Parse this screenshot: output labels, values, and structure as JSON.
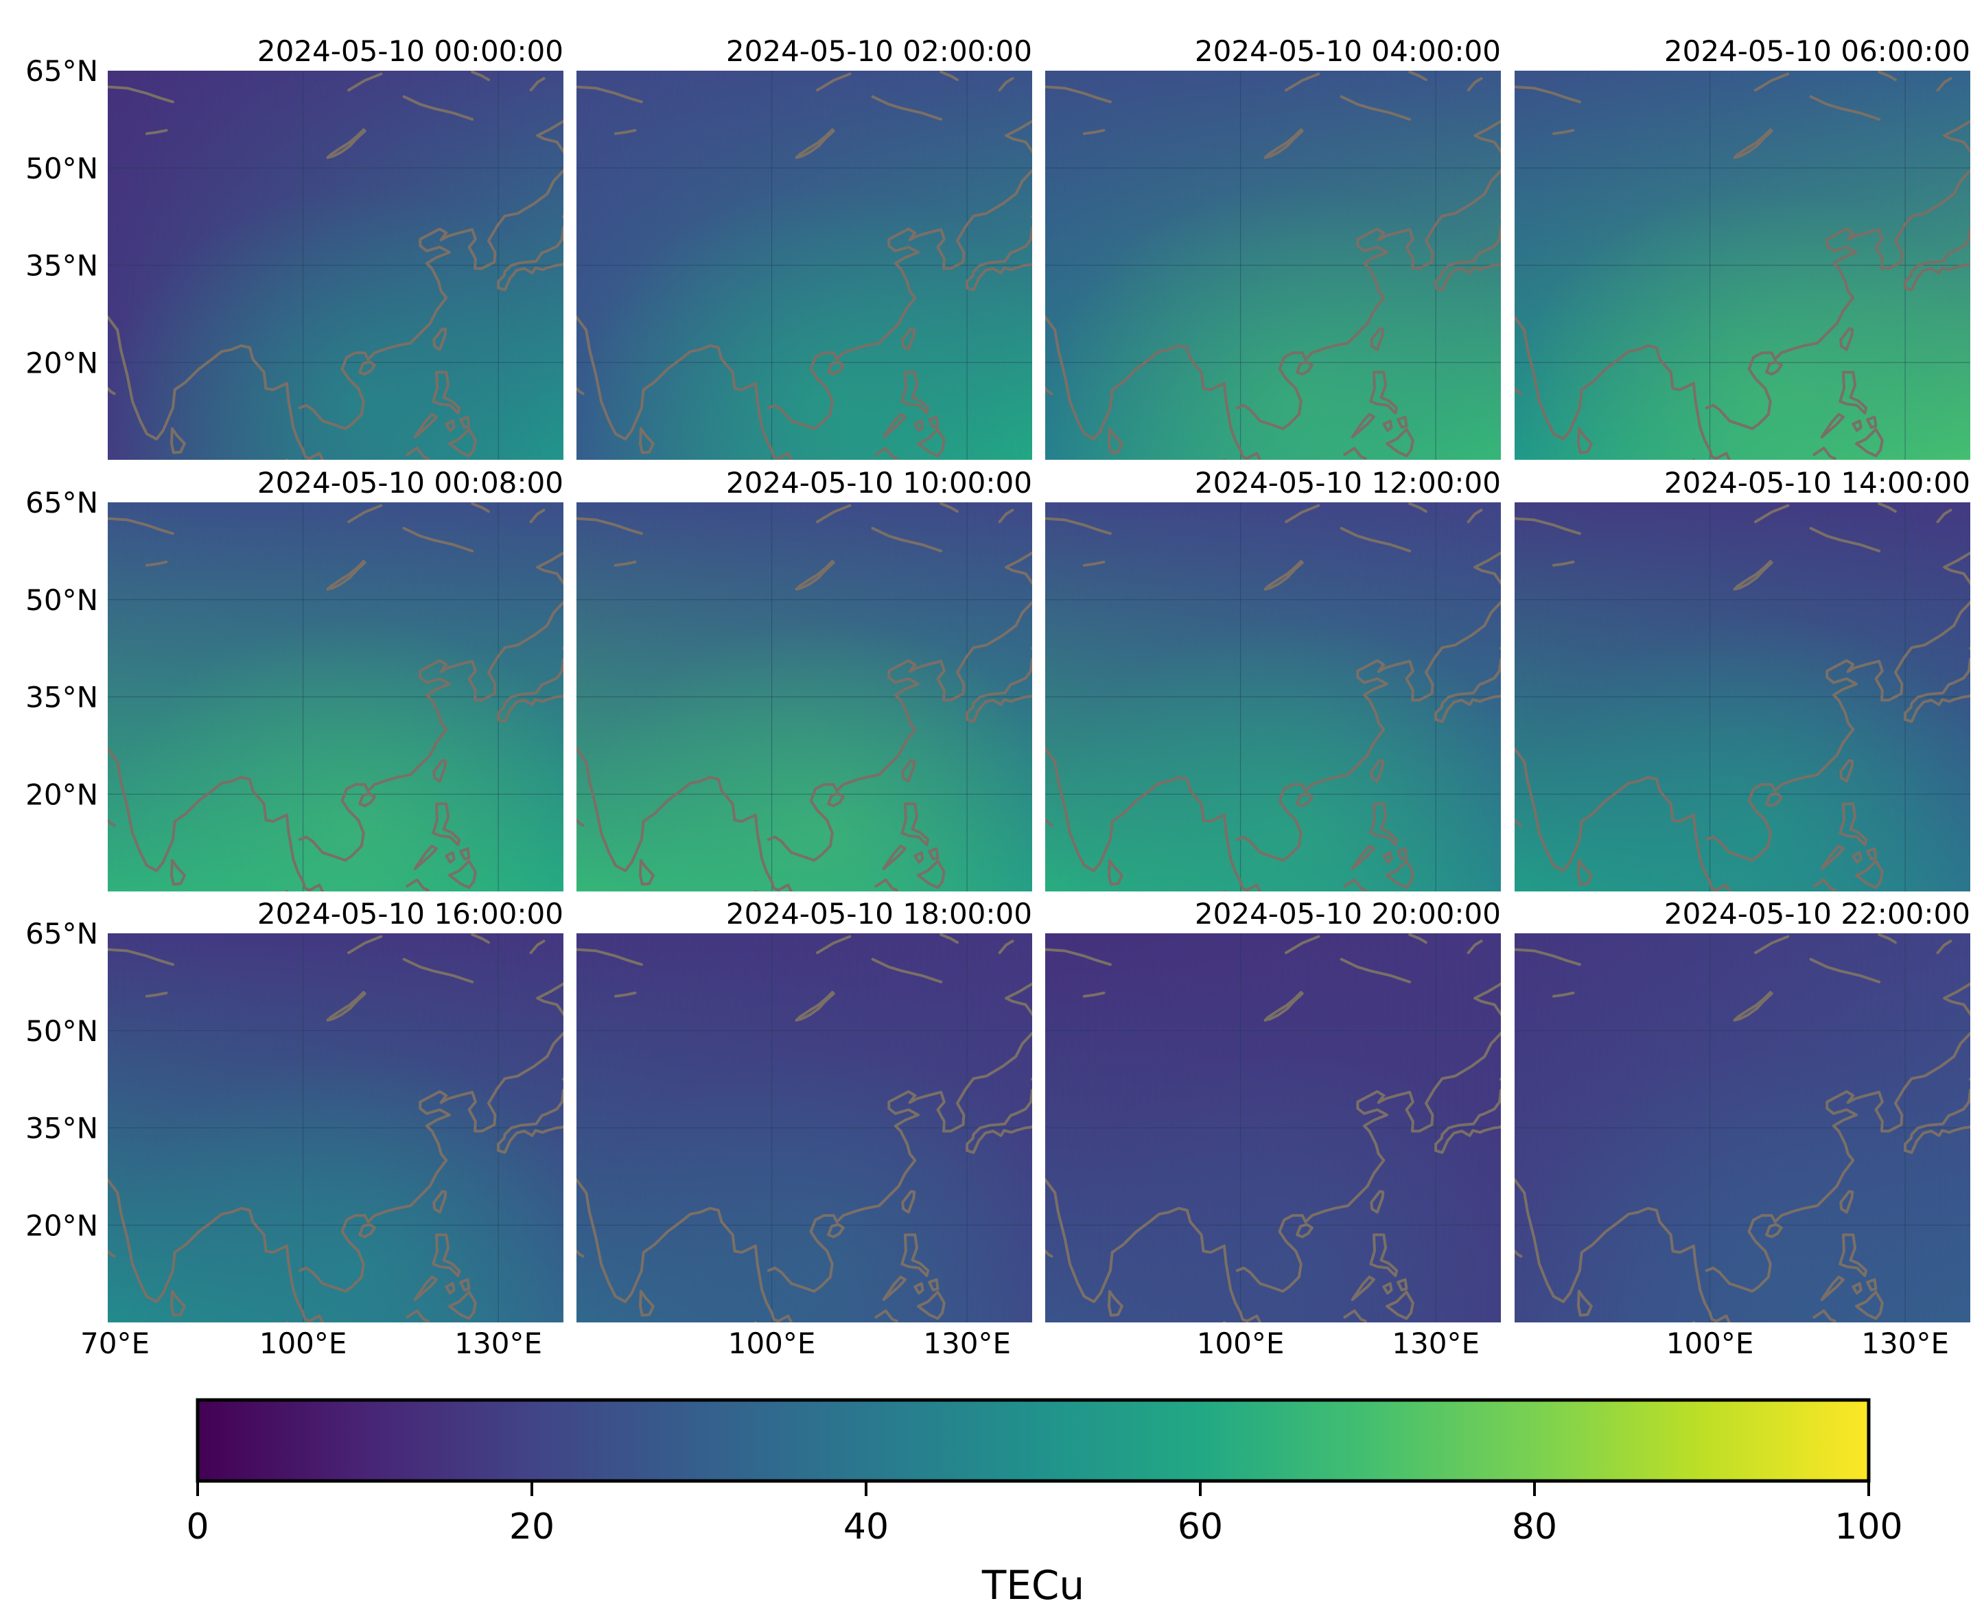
{
  "figure": {
    "panel_titles": [
      "2024-05-10 00:00:00",
      "2024-05-10 02:00:00",
      "2024-05-10 04:00:00",
      "2024-05-10 06:00:00",
      "2024-05-10 00:08:00",
      "2024-05-10 10:00:00",
      "2024-05-10 12:00:00",
      "2024-05-10 14:00:00",
      "2024-05-10 16:00:00",
      "2024-05-10 18:00:00",
      "2024-05-10 20:00:00",
      "2024-05-10 22:00:00"
    ],
    "lat_labels": [
      "65°N",
      "50°N",
      "35°N",
      "20°N"
    ],
    "lon_labels_first": [
      "70°E",
      "100°E",
      "130°E"
    ],
    "lon_labels_other": [
      "100°E",
      "130°E"
    ],
    "colorbar": {
      "label": "TECu",
      "ticks": [
        "0",
        "20",
        "40",
        "60",
        "80",
        "100"
      ],
      "min": 0,
      "max": 100
    }
  },
  "chart_data": {
    "type": "heatmap",
    "variable": "TECu",
    "lat_range": [
      5,
      65
    ],
    "lon_range": [
      70,
      140
    ],
    "colormap": "viridis",
    "vmin": 0,
    "vmax": 100,
    "panels": [
      {
        "time": "2024-05-10 00:00:00",
        "tec_north_west": 14,
        "tec_north_east": 22,
        "tec_south_west": 18,
        "tec_south_east": 52,
        "tec_max_center": 52
      },
      {
        "time": "2024-05-10 02:00:00",
        "tec_north_west": 22,
        "tec_north_east": 25,
        "tec_south_west": 30,
        "tec_south_east": 60,
        "tec_max_center": 60
      },
      {
        "time": "2024-05-10 04:00:00",
        "tec_north_west": 24,
        "tec_north_east": 27,
        "tec_south_west": 44,
        "tec_south_east": 66,
        "tec_max_center": 68
      },
      {
        "time": "2024-05-10 06:00:00",
        "tec_north_west": 25,
        "tec_north_east": 32,
        "tec_south_west": 54,
        "tec_south_east": 70,
        "tec_max_center": 70
      },
      {
        "time": "2024-05-10 00:08:00",
        "tec_north_west": 25,
        "tec_north_east": 24,
        "tec_south_west": 64,
        "tec_south_east": 60,
        "tec_max_center": 70
      },
      {
        "time": "2024-05-10 10:00:00",
        "tec_north_west": 24,
        "tec_north_east": 22,
        "tec_south_west": 66,
        "tec_south_east": 55,
        "tec_max_center": 70
      },
      {
        "time": "2024-05-10 12:00:00",
        "tec_north_west": 22,
        "tec_north_east": 20,
        "tec_south_west": 62,
        "tec_south_east": 45,
        "tec_max_center": 62
      },
      {
        "time": "2024-05-10 14:00:00",
        "tec_north_west": 18,
        "tec_north_east": 17,
        "tec_south_west": 55,
        "tec_south_east": 38,
        "tec_max_center": 55
      },
      {
        "time": "2024-05-10 16:00:00",
        "tec_north_west": 17,
        "tec_north_east": 16,
        "tec_south_west": 48,
        "tec_south_east": 32,
        "tec_max_center": 48
      },
      {
        "time": "2024-05-10 18:00:00",
        "tec_north_west": 16,
        "tec_north_east": 16,
        "tec_south_west": 34,
        "tec_south_east": 22,
        "tec_max_center": 34
      },
      {
        "time": "2024-05-10 20:00:00",
        "tec_north_west": 14,
        "tec_north_east": 16,
        "tec_south_west": 26,
        "tec_south_east": 18,
        "tec_max_center": 26
      },
      {
        "time": "2024-05-10 22:00:00",
        "tec_north_west": 16,
        "tec_north_east": 20,
        "tec_south_west": 22,
        "tec_south_east": 30,
        "tec_max_center": 30
      }
    ]
  }
}
